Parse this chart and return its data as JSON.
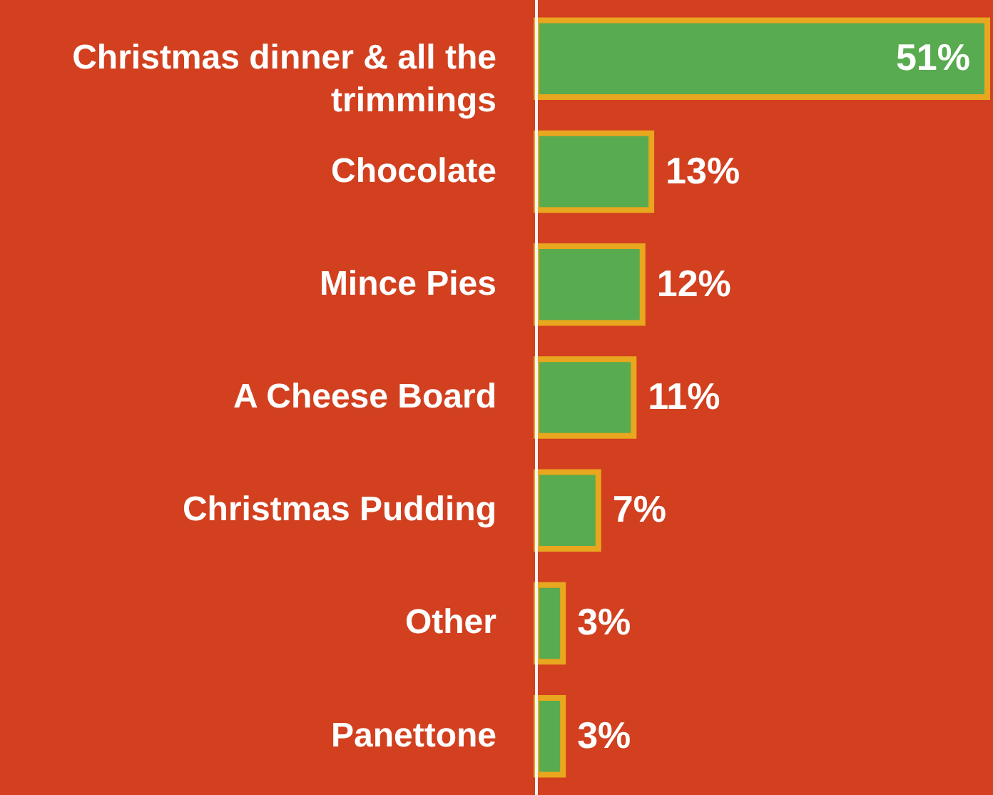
{
  "chart_data": {
    "type": "bar",
    "orientation": "horizontal",
    "categories": [
      "Christmas dinner & all the trimmings",
      "Chocolate",
      "Mince Pies",
      "A Cheese Board",
      "Christmas Pudding",
      "Other",
      "Panettone"
    ],
    "values": [
      51,
      13,
      12,
      11,
      7,
      3,
      3
    ],
    "color": "#58ab4f",
    "value_labels": [
      "51%",
      "13%",
      "12%",
      "11%",
      "7%",
      "3%",
      "3%"
    ],
    "grid": false
  }
}
